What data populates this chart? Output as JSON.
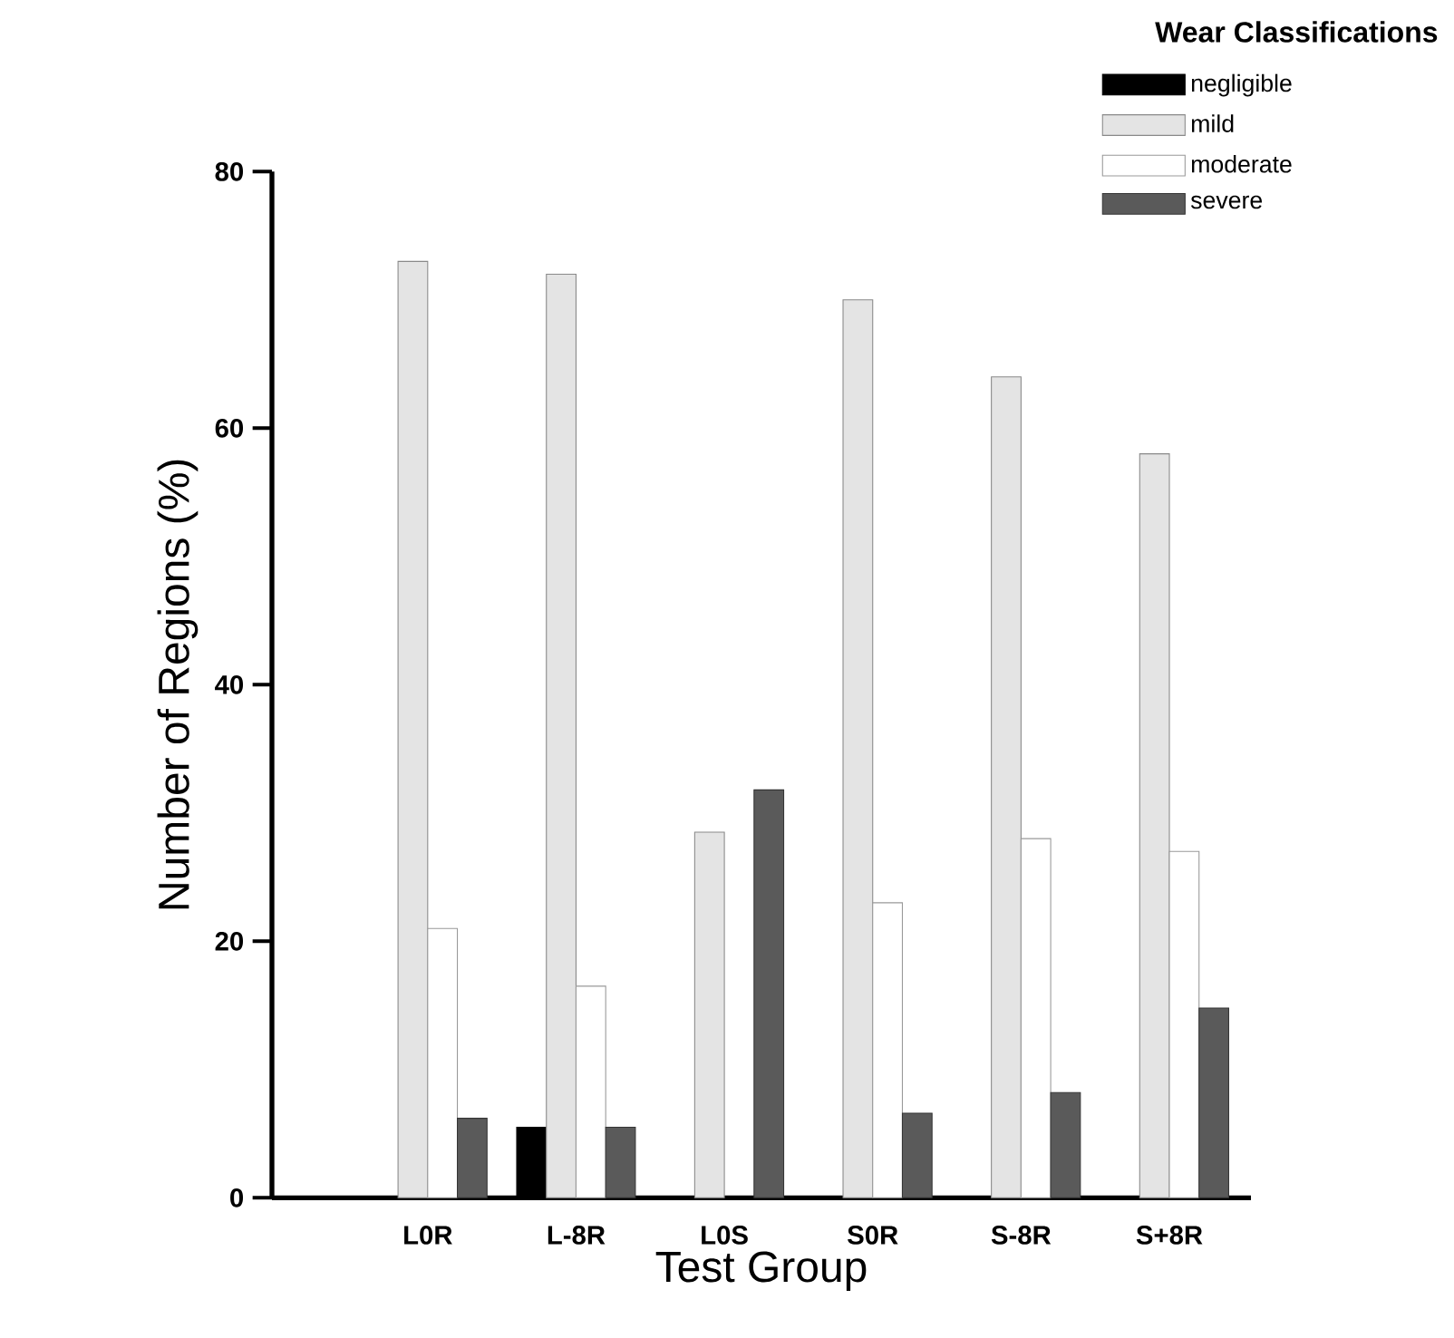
{
  "chart_data": {
    "type": "bar",
    "xlabel": "Test Group",
    "ylabel": "Number of Regions (%)",
    "legend_title": "Wear Classifications",
    "legend": "top right",
    "grid": false,
    "categories": [
      "L0R",
      "L-8R",
      "L0S",
      "S0R",
      "S-8R",
      "S+8R"
    ],
    "ylim": [
      0,
      80
    ],
    "yticks": [
      0,
      20,
      40,
      60,
      80
    ],
    "series": [
      {
        "name": "negligible",
        "color": "#000000",
        "values": [
          null,
          5.5,
          null,
          null,
          null,
          null
        ]
      },
      {
        "name": "mild",
        "color": "#e4e4e4",
        "values": [
          73,
          72,
          28.5,
          70,
          64,
          58
        ]
      },
      {
        "name": "moderate",
        "color": "#ffffff",
        "values": [
          21,
          16.5,
          null,
          23,
          28,
          27
        ]
      },
      {
        "name": "severe",
        "color": "#5a5a5a",
        "values": [
          6.2,
          5.5,
          31.8,
          6.6,
          8.2,
          14.8
        ]
      }
    ]
  }
}
